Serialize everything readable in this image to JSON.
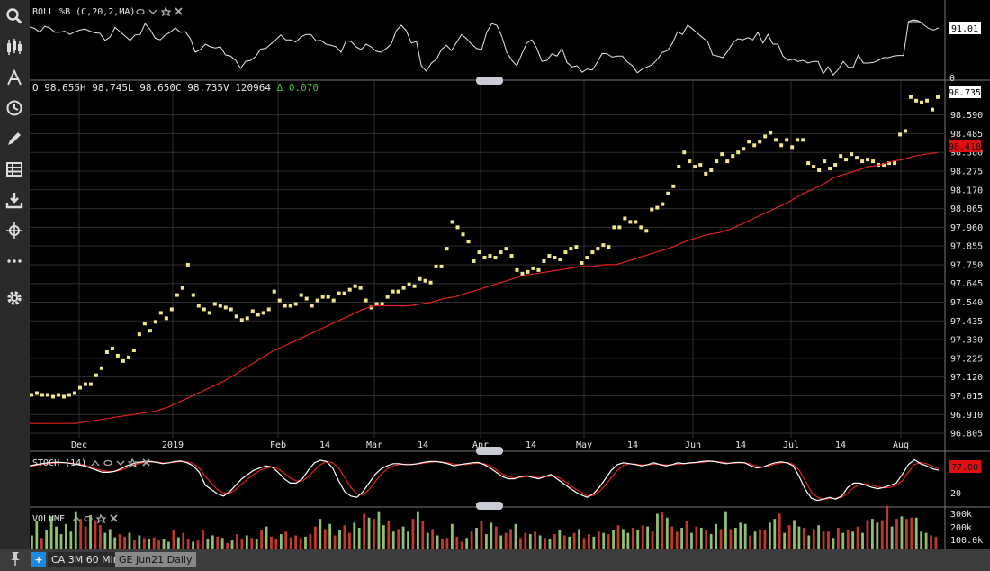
{
  "indicators": {
    "boll": {
      "label": "BOLL %B (C,20,2,MA)",
      "value_badge": "91.01",
      "axis_zero": "0"
    },
    "ohlc": {
      "o_label": "O",
      "o": "98.655",
      "h_label": "H",
      "h": "98.745",
      "l_label": "L",
      "l": "98.650",
      "c_label": "C",
      "c": "98.735",
      "v_label": "V",
      "v": "120964",
      "change": "Δ 0.070"
    },
    "stoch": {
      "label": "STOCH (14)",
      "value_badge": "77.00",
      "axis_label": "20"
    },
    "volume": {
      "label": "VOLUME",
      "axis_labels": [
        "300k",
        "200k",
        "100.0k"
      ]
    }
  },
  "price_badges": {
    "last": "98.735",
    "ma": "98.418"
  },
  "colors": {
    "price_dot": "#f0e68c",
    "ma_line": "#e02020",
    "stoch_k": "#ffffff",
    "stoch_d": "#e02020",
    "vol_up": "#8fbf6f",
    "vol_down": "#c0392b",
    "badge_red": "#e01010",
    "grid": "#2e2e2e"
  },
  "chart_data": {
    "type": "scatter",
    "title": "",
    "x_tick_labels": [
      "Dec",
      "2019",
      "Feb",
      "14",
      "Mar",
      "14",
      "Apr",
      "14",
      "May",
      "14",
      "Jun",
      "14",
      "Jul",
      "14",
      "Aug"
    ],
    "y_tick_labels": [
      "98.590",
      "98.485",
      "98.380",
      "98.275",
      "98.170",
      "98.065",
      "97.960",
      "97.855",
      "97.750",
      "97.645",
      "97.540",
      "97.435",
      "97.330",
      "97.225",
      "97.120",
      "97.015",
      "96.910",
      "96.805"
    ],
    "ylim": [
      96.78,
      98.78
    ],
    "grid": true,
    "series": [
      {
        "values": [
          97.02,
          97.03,
          97.02,
          97.02,
          97.01,
          97.02,
          97.01,
          97.02,
          97.03,
          97.06,
          97.08,
          97.08,
          97.13,
          97.17,
          97.26,
          97.28,
          97.24,
          97.21,
          97.23,
          97.27,
          97.36,
          97.42,
          97.38,
          97.43,
          97.48,
          97.45,
          97.5,
          97.58,
          97.62,
          97.75,
          97.58,
          97.52,
          97.5,
          97.48,
          97.53,
          97.52,
          97.51,
          97.5,
          97.46,
          97.44,
          97.45,
          97.49,
          97.47,
          97.48,
          97.5,
          97.6,
          97.55,
          97.52,
          97.52,
          97.53,
          97.58,
          97.56,
          97.52,
          97.55,
          97.57,
          97.57,
          97.55,
          97.59,
          97.59,
          97.61,
          97.63,
          97.62,
          97.55,
          97.51,
          97.53,
          97.53,
          97.57,
          97.6,
          97.6,
          97.62,
          97.64,
          97.63,
          97.67,
          97.66,
          97.65,
          97.74,
          97.74,
          97.84,
          97.99,
          97.96,
          97.92,
          97.88,
          97.77,
          97.82,
          97.79,
          97.8,
          97.79,
          97.82,
          97.84,
          97.8,
          97.72,
          97.7,
          97.71,
          97.73,
          97.72,
          97.77,
          97.8,
          97.79,
          97.78,
          97.82,
          97.84,
          97.85,
          97.76,
          97.79,
          97.82,
          97.84,
          97.86,
          97.85,
          97.96,
          97.96,
          98.01,
          97.99,
          97.99,
          97.96,
          97.94,
          98.06,
          98.07,
          98.09,
          98.15,
          98.19,
          98.3,
          98.38,
          98.33,
          98.3,
          98.31,
          98.26,
          98.28,
          98.33,
          98.37,
          98.33,
          98.36,
          98.38,
          98.4,
          98.44,
          98.42,
          98.44,
          98.47,
          98.49,
          98.45,
          98.42,
          98.45,
          98.41,
          98.45,
          98.45,
          98.32,
          98.3,
          98.28,
          98.33,
          98.29,
          98.31,
          98.36,
          98.34,
          98.37,
          98.35,
          98.33,
          98.34,
          98.33,
          98.31,
          98.31,
          98.32,
          98.32,
          98.48,
          98.5,
          98.69,
          98.67,
          98.66,
          98.67,
          98.62,
          98.69
        ]
      },
      {
        "values": [
          96.86,
          96.86,
          96.86,
          96.86,
          96.86,
          96.87,
          96.88,
          96.89,
          96.9,
          96.91,
          96.92,
          96.93,
          96.95,
          96.98,
          97.01,
          97.04,
          97.07,
          97.1,
          97.14,
          97.18,
          97.22,
          97.26,
          97.29,
          97.32,
          97.35,
          97.38,
          97.41,
          97.44,
          97.47,
          97.5,
          97.52,
          97.52,
          97.52,
          97.52,
          97.53,
          97.54,
          97.56,
          97.57,
          97.59,
          97.61,
          97.63,
          97.65,
          97.67,
          97.69,
          97.7,
          97.71,
          97.72,
          97.73,
          97.74,
          97.74,
          97.75,
          97.75,
          97.77,
          97.79,
          97.81,
          97.83,
          97.85,
          97.88,
          97.9,
          97.92,
          97.93,
          97.95,
          97.98,
          98.01,
          98.04,
          98.07,
          98.1,
          98.14,
          98.17,
          98.2,
          98.24,
          98.26,
          98.28,
          98.3,
          98.31,
          98.33,
          98.34,
          98.36,
          98.37,
          98.38
        ]
      }
    ],
    "boll_percent_b": [
      0.92,
      0.89,
      0.82,
      0.93,
      0.9,
      0.82,
      0.82,
      0.84,
      0.78,
      0.83,
      0.86,
      0.88,
      0.84,
      0.81,
      0.8,
      0.67,
      0.73,
      0.91,
      0.83,
      0.75,
      0.67,
      0.77,
      0.78,
      0.98,
      0.87,
      0.71,
      0.68,
      0.77,
      0.82,
      0.9,
      0.82,
      0.83,
      0.7,
      0.45,
      0.5,
      0.6,
      0.55,
      0.53,
      0.55,
      0.4,
      0.38,
      0.3,
      0.15,
      0.28,
      0.3,
      0.37,
      0.51,
      0.52,
      0.6,
      0.68,
      0.77,
      0.68,
      0.68,
      0.64,
      0.73,
      0.78,
      0.78,
      0.66,
      0.67,
      0.6,
      0.58,
      0.55,
      0.45,
      0.66,
      0.65,
      0.55,
      0.5,
      0.6,
      0.55,
      0.47,
      0.45,
      0.52,
      0.6,
      0.85,
      0.95,
      0.85,
      0.62,
      0.65,
      0.2,
      0.1,
      0.25,
      0.32,
      0.5,
      0.58,
      0.48,
      0.63,
      0.78,
      0.7,
      0.6,
      0.52,
      0.5,
      0.82,
      0.98,
      0.95,
      0.75,
      0.45,
      0.3,
      0.2,
      0.42,
      0.62,
      0.68,
      0.52,
      0.28,
      0.3,
      0.42,
      0.38,
      0.52,
      0.26,
      0.18,
      0.2,
      0.08,
      0.14,
      0.12,
      0.26,
      0.43,
      0.42,
      0.36,
      0.38,
      0.38,
      0.27,
      0.2,
      0.07,
      0.14,
      0.18,
      0.22,
      0.32,
      0.45,
      0.48,
      0.62,
      0.83,
      0.78,
      0.95,
      0.88,
      0.8,
      0.72,
      0.65,
      0.4,
      0.38,
      0.35,
      0.47,
      0.62,
      0.7,
      0.68,
      0.72,
      0.68,
      0.82,
      0.62,
      0.78,
      0.6,
      0.6,
      0.38,
      0.3,
      0.32,
      0.28,
      0.3,
      0.25,
      0.28,
      0.28,
      0.05,
      0.18,
      0.03,
      0.13,
      0.28,
      0.17,
      0.17,
      0.4,
      0.25,
      0.25,
      0.26,
      0.3,
      0.35,
      0.35,
      0.38,
      0.39,
      0.39,
      1.02,
      1.05,
      1.03,
      0.96,
      0.89,
      0.86,
      0.9
    ],
    "stoch_k": [
      85,
      88,
      90,
      92,
      93,
      93,
      92,
      90,
      88,
      85,
      80,
      75,
      70,
      70,
      72,
      78,
      85,
      90,
      93,
      95,
      95,
      93,
      90,
      92,
      95,
      96,
      92,
      85,
      70,
      40,
      30,
      20,
      15,
      25,
      40,
      55,
      65,
      75,
      80,
      85,
      82,
      70,
      55,
      45,
      45,
      55,
      75,
      92,
      98,
      95,
      80,
      50,
      25,
      15,
      12,
      25,
      45,
      65,
      78,
      85,
      90,
      90,
      88,
      88,
      90,
      93,
      95,
      95,
      93,
      90,
      85,
      88,
      90,
      92,
      93,
      88,
      80,
      70,
      60,
      55,
      55,
      60,
      62,
      58,
      55,
      60,
      65,
      55,
      45,
      35,
      25,
      18,
      12,
      20,
      35,
      55,
      75,
      88,
      92,
      90,
      88,
      85,
      88,
      92,
      88,
      85,
      88,
      92,
      90,
      92,
      93,
      95,
      96,
      95,
      92,
      90,
      92,
      93,
      92,
      85,
      80,
      82,
      88,
      92,
      94,
      92,
      85,
      60,
      30,
      10,
      5,
      8,
      12,
      8,
      15,
      35,
      45,
      45,
      40,
      35,
      32,
      35,
      40,
      45,
      65,
      88,
      99,
      90,
      85,
      78,
      75
    ],
    "stoch_d": [
      83,
      86,
      88,
      90,
      91,
      92,
      92,
      91,
      89,
      87,
      83,
      78,
      74,
      72,
      72,
      75,
      80,
      86,
      90,
      93,
      94,
      94,
      92,
      92,
      93,
      95,
      94,
      90,
      80,
      60,
      45,
      30,
      22,
      22,
      30,
      42,
      55,
      65,
      75,
      80,
      82,
      78,
      68,
      57,
      50,
      50,
      60,
      75,
      88,
      95,
      92,
      80,
      58,
      35,
      20,
      18,
      30,
      48,
      65,
      78,
      85,
      88,
      89,
      89,
      89,
      91,
      93,
      94,
      94,
      92,
      89,
      88,
      88,
      90,
      91,
      90,
      85,
      76,
      66,
      60,
      57,
      58,
      60,
      60,
      58,
      59,
      61,
      60,
      52,
      42,
      32,
      24,
      16,
      16,
      25,
      40,
      58,
      75,
      86,
      90,
      89,
      87,
      87,
      89,
      89,
      87,
      87,
      89,
      90,
      91,
      92,
      93,
      95,
      95,
      94,
      92,
      91,
      92,
      92,
      89,
      84,
      82,
      85,
      89,
      92,
      92,
      89,
      75,
      50,
      25,
      12,
      8,
      9,
      10,
      12,
      22,
      35,
      42,
      43,
      40,
      36,
      34,
      35,
      40,
      50,
      70,
      88,
      93,
      90,
      84,
      79
    ],
    "volume": {
      "values": [
        110,
        220,
        90,
        150,
        260,
        180,
        120,
        200,
        140,
        300,
        240,
        180,
        270,
        230,
        190,
        130,
        160,
        95,
        120,
        100,
        130,
        70,
        110,
        90,
        80,
        95,
        70,
        80,
        60,
        150,
        95,
        130,
        85,
        60,
        70,
        150,
        85,
        110,
        100,
        90,
        50,
        70,
        120,
        80,
        110,
        90,
        85,
        150,
        180,
        100,
        80,
        120,
        140,
        95,
        110,
        90,
        100,
        120,
        180,
        240,
        160,
        200,
        110,
        150,
        190,
        130,
        210,
        170,
        280,
        250,
        240,
        300,
        190,
        220,
        140,
        160,
        180,
        140,
        240,
        300,
        220,
        130,
        160,
        110,
        80,
        90,
        200,
        100,
        60,
        90,
        140,
        170,
        220,
        120,
        210,
        180,
        110,
        130,
        160,
        200,
        90,
        130,
        120,
        140,
        110,
        90,
        80,
        120,
        150,
        110,
        100,
        130,
        160,
        90,
        120,
        100,
        140,
        130,
        120,
        150,
        190,
        160,
        130,
        170,
        150,
        190,
        180,
        140,
        280,
        290,
        250,
        180,
        140,
        170,
        220,
        130,
        180,
        170,
        150,
        120,
        200,
        160,
        300,
        160,
        170,
        210,
        200,
        110,
        140,
        160,
        150,
        210,
        240,
        280,
        130,
        190,
        230,
        180,
        170,
        110,
        160,
        190,
        140,
        140,
        90,
        170,
        130,
        150,
        140,
        180,
        130,
        230,
        240,
        210,
        230,
        340,
        180,
        240,
        260,
        240,
        250,
        250,
        140,
        130,
        110,
        100
      ],
      "colors": "ggrgggggggrrgrrgggrrgrgrgrrggrgrrgrrggrgrgrrgrgrgrrgrrrrgrrgrgrgrrggrgrggrgrggrgrgrgrrgrrgrgrggrgrrgrrgrgrgrgrgrgrrgrgrgrggrgrgrgrgrrgrgrgrggrgrgggrgrrggrgrggrgrgrrgrgrgrgrggrrgrgrrgggrrgrrgr"
    }
  }
}
